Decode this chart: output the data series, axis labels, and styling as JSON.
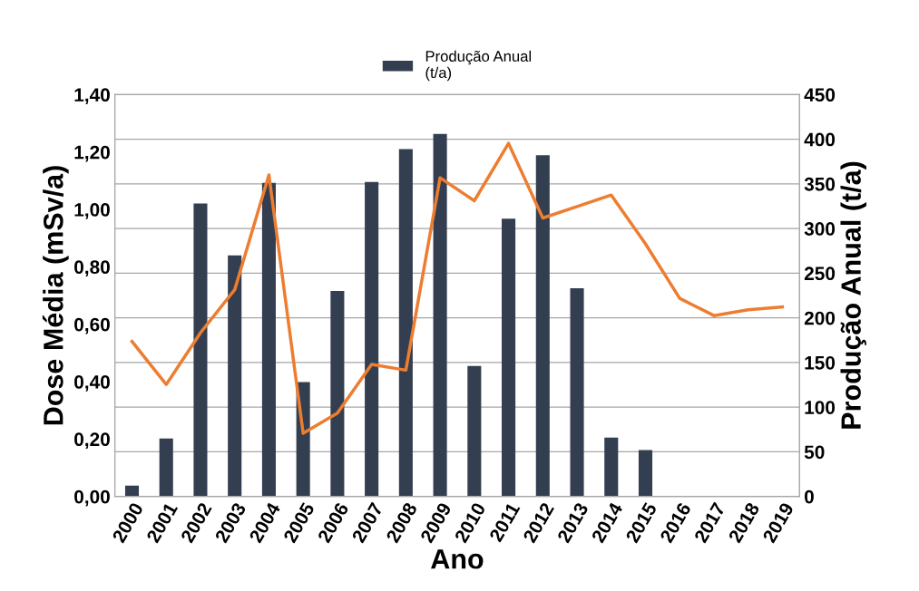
{
  "chart_data": {
    "type": "bar",
    "xlabel": "Ano",
    "ylabel": "Dose Média (mSv/a)",
    "y2label": "Produção Anual (t/a)",
    "categories": [
      "2000",
      "2001",
      "2002",
      "2003",
      "2004",
      "2005",
      "2006",
      "2007",
      "2008",
      "2009",
      "2010",
      "2011",
      "2012",
      "2013",
      "2014",
      "2015",
      "2016",
      "2017",
      "2018",
      "2019"
    ],
    "series": [
      {
        "name": "Produção Anual\n(t/a)",
        "axis": "y2",
        "color": "#333f50",
        "values": [
          12,
          65,
          328,
          270,
          351,
          128,
          230,
          352,
          389,
          406,
          146,
          311,
          382,
          233,
          66,
          52,
          0,
          0,
          0,
          0
        ]
      },
      {
        "type": "line",
        "color": "#ed7d31",
        "values": [
          0.54,
          0.39,
          0.57,
          0.72,
          1.12,
          0.22,
          0.29,
          0.46,
          0.44,
          1.11,
          1.03,
          1.23,
          0.97,
          1.01,
          1.05,
          0.88,
          0.69,
          0.63,
          0.65,
          0.66
        ]
      }
    ],
    "ylim": [
      0,
      1.4
    ],
    "yticks": [
      {
        "value": 0,
        "label": "0,00"
      },
      {
        "value": 0.2,
        "label": "0,20"
      },
      {
        "value": 0.4,
        "label": "0,40"
      },
      {
        "value": 0.6,
        "label": "0,60"
      },
      {
        "value": 0.8,
        "label": "0,80"
      },
      {
        "value": 1.0,
        "label": "1,00"
      },
      {
        "value": 1.2,
        "label": "1,20"
      },
      {
        "value": 1.4,
        "label": "1,40"
      }
    ],
    "y2lim": [
      0,
      450
    ],
    "y2ticks": [
      0,
      50,
      100,
      150,
      200,
      250,
      300,
      350,
      400,
      450
    ],
    "grid": "y",
    "legend": "top",
    "marker": "none",
    "line_style": "solid"
  }
}
